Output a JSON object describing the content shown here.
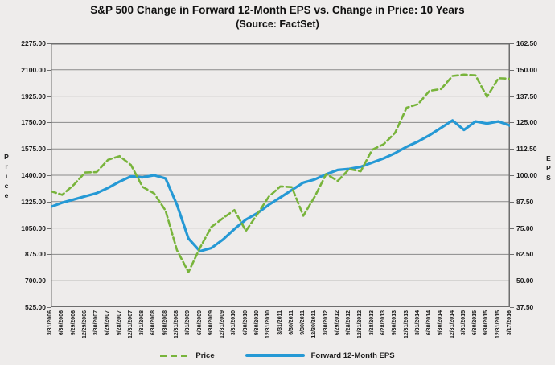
{
  "title": "S&P 500 Change in Forward 12-Month EPS vs. Change in Price: 10 Years",
  "subtitle": "(Source: FactSet)",
  "colors": {
    "price_line": "#78b43b",
    "eps_line": "#2599d5",
    "grid": "#8a8a8a",
    "axis_border": "#6e6e6e",
    "background": "#eeeceb",
    "text": "#1c1c1c"
  },
  "chart_data": {
    "type": "line",
    "title": "S&P 500 Change in Forward 12-Month EPS vs. Change in Price: 10 Years",
    "subtitle": "(Source: FactSet)",
    "grid": true,
    "legend_position": "bottom",
    "categories": [
      "3/31/2006",
      "6/30/2006",
      "9/29/2006",
      "12/29/2006",
      "3/30/2007",
      "6/29/2007",
      "9/28/2007",
      "12/31/2007",
      "3/31/2008",
      "6/30/2008",
      "9/30/2008",
      "12/31/2008",
      "3/31/2009",
      "6/30/2009",
      "9/30/2009",
      "12/31/2009",
      "3/31/2010",
      "6/30/2010",
      "9/30/2010",
      "12/31/2010",
      "3/31/2011",
      "6/30/2011",
      "9/30/2011",
      "12/30/2011",
      "3/30/2012",
      "6/29/2012",
      "9/28/2012",
      "12/31/2012",
      "3/28/2013",
      "6/28/2013",
      "9/30/2013",
      "12/31/2013",
      "3/31/2014",
      "6/30/2014",
      "9/30/2014",
      "12/31/2014",
      "3/31/2015",
      "6/30/2015",
      "9/30/2015",
      "12/31/2015",
      "3/17/2016"
    ],
    "axes": {
      "left": {
        "label": "Price",
        "min": 525,
        "max": 2275,
        "ticks": [
          "2275.00",
          "2100.00",
          "1925.00",
          "1750.00",
          "1575.00",
          "1400.00",
          "1225.00",
          "1050.00",
          "875.00",
          "700.00",
          "525.00"
        ]
      },
      "right": {
        "label": "EPS",
        "min": 37.5,
        "max": 162.5,
        "ticks": [
          "162.50",
          "150.00",
          "137.50",
          "125.00",
          "112.50",
          "100.00",
          "87.50",
          "75.00",
          "62.50",
          "50.00",
          "37.50"
        ]
      }
    },
    "series": [
      {
        "name": "Price",
        "axis": "left",
        "style": "dashed",
        "color": "#78b43b",
        "values": [
          1295,
          1270,
          1336,
          1418,
          1421,
          1503,
          1527,
          1468,
          1323,
          1280,
          1166,
          903,
          757,
          919,
          1057,
          1115,
          1169,
          1031,
          1141,
          1258,
          1326,
          1321,
          1131,
          1258,
          1408,
          1362,
          1441,
          1426,
          1569,
          1606,
          1682,
          1848,
          1872,
          1960,
          1972,
          2059,
          2068,
          2063,
          1920,
          2044,
          2040
        ]
      },
      {
        "name": "Forward 12-Month EPS",
        "axis": "right",
        "style": "solid",
        "color": "#2599d5",
        "values": [
          85.0,
          87.0,
          88.5,
          90.0,
          91.5,
          94.0,
          97.0,
          99.5,
          99.0,
          100.0,
          98.5,
          86.0,
          70.0,
          64.0,
          65.5,
          69.5,
          74.5,
          79.0,
          82.0,
          86.0,
          89.5,
          93.0,
          96.5,
          98.0,
          100.5,
          102.5,
          103.0,
          104.0,
          106.0,
          108.0,
          110.5,
          113.5,
          116.0,
          119.0,
          122.5,
          126.0,
          121.5,
          125.5,
          124.5,
          125.5,
          123.5
        ]
      }
    ]
  }
}
